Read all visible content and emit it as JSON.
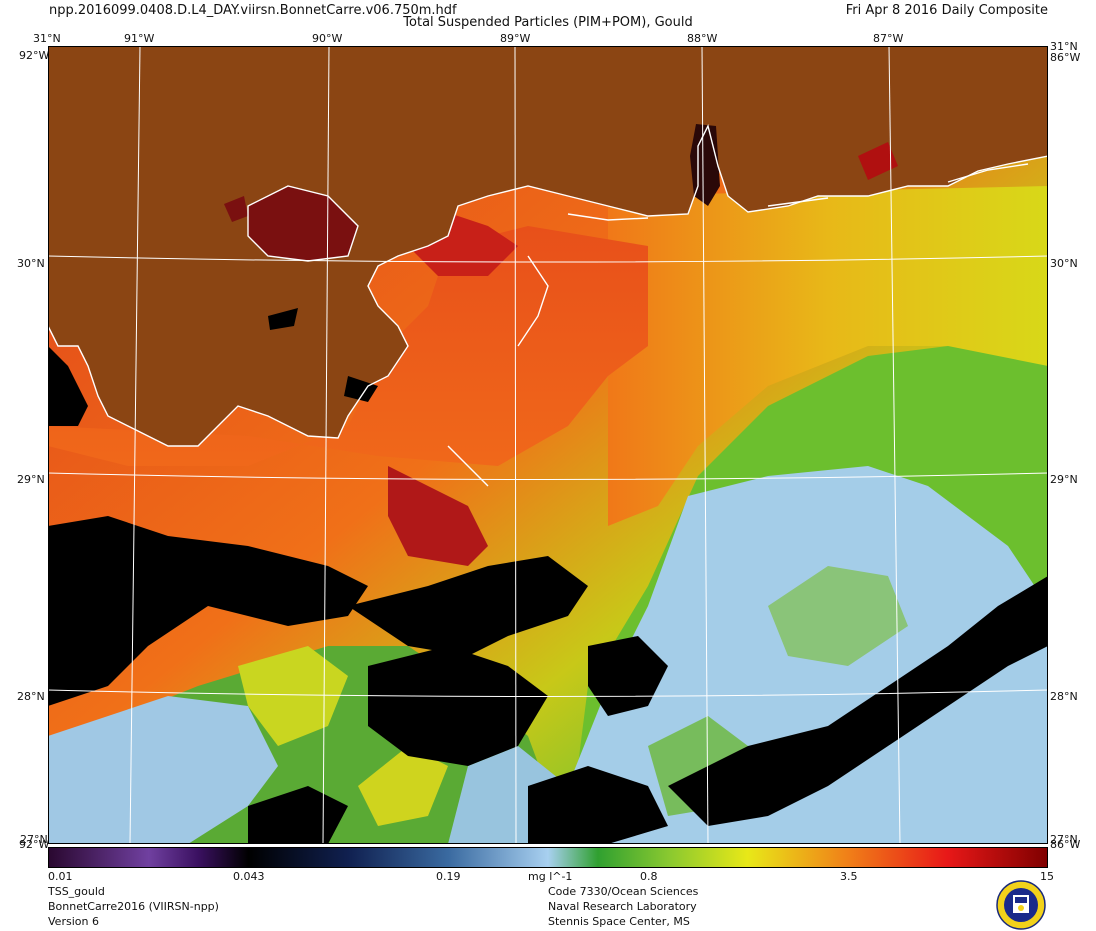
{
  "header": {
    "filename": "npp.2016099.0408.D.L4_DAY.viirsn.BonnetCarre.v06.750m.hdf",
    "title": "Total Suspended Particles (PIM+POM), Gould",
    "date": "Fri Apr  8 2016 Daily Composite"
  },
  "map": {
    "lon_labels": [
      "91°W",
      "90°W",
      "89°W",
      "88°W",
      "87°W"
    ],
    "lat_labels": [
      "30°N",
      "29°N",
      "28°N"
    ],
    "corner_top_lat": "31°N",
    "corner_top_lon": "92°W",
    "corner_top_lon_right": "86°W",
    "corner_bottom_lat": "27°N",
    "corner_bottom_lon": "92°W",
    "corner_bottom_lon_right": "86°W",
    "colors": {
      "land": "#8b4513",
      "nodata": "#000000",
      "coast": "#ffffff",
      "grid": "#ffffff"
    }
  },
  "colorbar": {
    "tick_labels": [
      "0.01",
      "0.043",
      "0.19",
      "0.8",
      "3.5",
      "15"
    ],
    "units": "mg l^-1",
    "scale": "log"
  },
  "footer": {
    "product": "TSS_gould",
    "project": "BonnetCarre2016 (VIIRSN-npp)",
    "version": "Version 6",
    "org_code": "Code 7330/Ocean Sciences",
    "org_name": "Naval Research Laboratory",
    "org_place": "Stennis Space Center, MS"
  }
}
